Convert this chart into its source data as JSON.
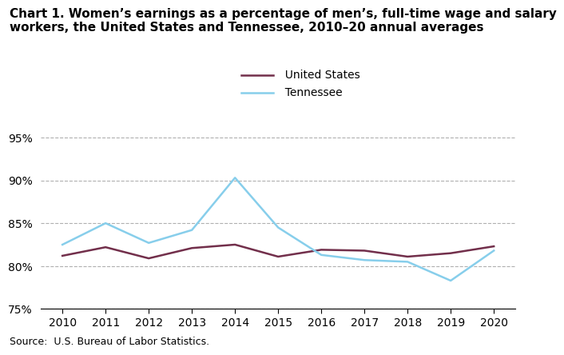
{
  "years": [
    2010,
    2011,
    2012,
    2013,
    2014,
    2015,
    2016,
    2017,
    2018,
    2019,
    2020
  ],
  "us_values": [
    81.2,
    82.2,
    80.9,
    82.1,
    82.5,
    81.1,
    81.9,
    81.8,
    81.1,
    81.5,
    82.3
  ],
  "tn_values": [
    82.5,
    85.0,
    82.7,
    84.2,
    90.3,
    84.5,
    81.3,
    80.7,
    80.5,
    78.3,
    81.8
  ],
  "us_color": "#722F4B",
  "tn_color": "#87CEEB",
  "us_label": "United States",
  "tn_label": "Tennessee",
  "title_line1": "Chart 1. Women’s earnings as a percentage of men’s, full-time wage and salary",
  "title_line2": "workers, the United States and Tennessee, 2010–20 annual averages",
  "ylim": [
    75,
    96
  ],
  "yticks": [
    75,
    80,
    85,
    90,
    95
  ],
  "ytick_labels": [
    "75%",
    "80%",
    "85%",
    "90%",
    "95%"
  ],
  "xlim": [
    2009.5,
    2020.5
  ],
  "source_text": "Source:  U.S. Bureau of Labor Statistics.",
  "bg_color": "#ffffff",
  "grid_color": "#b0b0b0",
  "grid_style": "--",
  "line_width": 1.8,
  "title_fontsize": 11,
  "tick_fontsize": 10,
  "source_fontsize": 9,
  "legend_fontsize": 10
}
